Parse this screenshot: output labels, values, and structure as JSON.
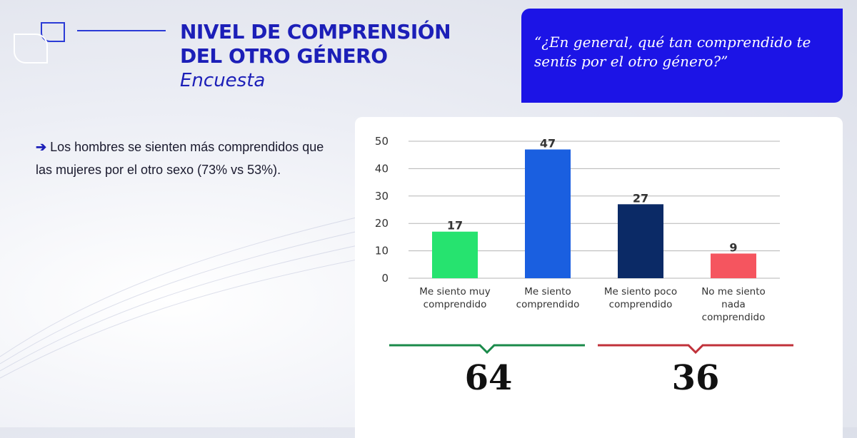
{
  "header": {
    "title_line1": "NIVEL DE COMPRENSIÓN",
    "title_line2": "DEL OTRO GÉNERO",
    "subtitle": "Encuesta"
  },
  "question": {
    "text_line1": "“¿En general, qué tan comprendido te",
    "text_line2": "sentís por el otro género?”"
  },
  "insight": {
    "arrow": "➔",
    "text": "Los hombres se sienten más comprendidos que las mujeres por el otro sexo (73% vs 53%)."
  },
  "colors": {
    "brand_blue": "#1c1fb8",
    "question_bg": "#1c14e6",
    "positive_brace": "#1a8a4a",
    "negative_brace": "#c0313a"
  },
  "chart_data": {
    "type": "bar",
    "categories": [
      [
        "Me siento muy",
        "comprendido"
      ],
      [
        "Me siento",
        "comprendido"
      ],
      [
        "Me siento poco",
        "comprendido"
      ],
      [
        "No me siento",
        "nada",
        "comprendido"
      ]
    ],
    "values": [
      17,
      47,
      27,
      9
    ],
    "colors": [
      "#26e36f",
      "#1a5fe0",
      "#0b2a66",
      "#f5555f"
    ],
    "ylim": [
      0,
      50
    ],
    "yticks": [
      0,
      10,
      20,
      30,
      40,
      50
    ],
    "grid": true
  },
  "totals": {
    "positive": "64",
    "negative": "36"
  }
}
